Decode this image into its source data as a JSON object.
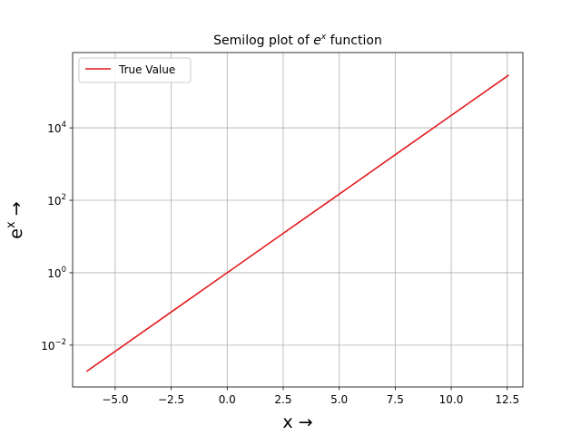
{
  "chart_data": {
    "type": "line",
    "title": {
      "base": "Semilog plot of ",
      "sym": "e",
      "sup": "x",
      "rest": " function"
    },
    "xlabel": "x →",
    "ylabel": {
      "base": "e",
      "sup": "x",
      "arrow": " →"
    },
    "x_scale": "linear",
    "y_scale": "log",
    "xlim": [
      -6.9,
      13.2
    ],
    "ylim": [
      0.0007,
      1200000
    ],
    "x_ticks": [
      {
        "value": -5.0,
        "label": "−5.0"
      },
      {
        "value": -2.5,
        "label": "−2.5"
      },
      {
        "value": 0.0,
        "label": "0.0"
      },
      {
        "value": 2.5,
        "label": "2.5"
      },
      {
        "value": 5.0,
        "label": "5.0"
      },
      {
        "value": 7.5,
        "label": "7.5"
      },
      {
        "value": 10.0,
        "label": "10.0"
      },
      {
        "value": 12.5,
        "label": "12.5"
      }
    ],
    "y_ticks": [
      {
        "value": 0.01,
        "base": "10",
        "exp": "−2"
      },
      {
        "value": 1,
        "base": "10",
        "exp": "0"
      },
      {
        "value": 100,
        "base": "10",
        "exp": "2"
      },
      {
        "value": 10000,
        "base": "10",
        "exp": "4"
      }
    ],
    "grid": true,
    "legend": {
      "position": "upper-left",
      "entries": [
        "True Value"
      ]
    },
    "series": [
      {
        "name": "True Value",
        "color": "#e31a1c",
        "x": [
          -6.28,
          -5.0,
          -2.5,
          0.0,
          2.5,
          5.0,
          7.5,
          10.0,
          12.57
        ],
        "y": [
          0.00187,
          0.00674,
          0.0821,
          1.0,
          12.18,
          148.4,
          1808.0,
          22026.0,
          287000.0
        ]
      }
    ]
  }
}
